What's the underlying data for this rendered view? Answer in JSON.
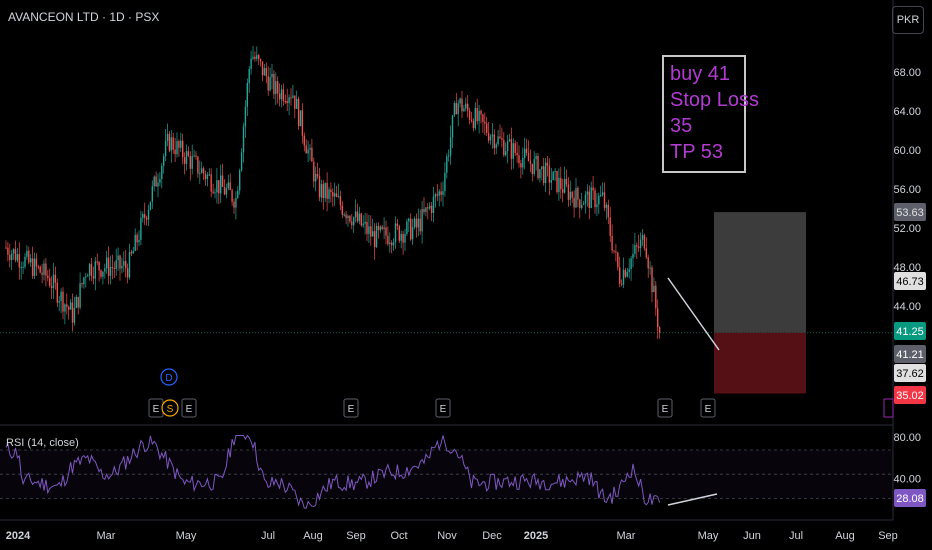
{
  "header": {
    "title": "AVANCEON LTD · 1D · PSX",
    "currency": "PKR"
  },
  "note": {
    "lines": [
      "buy 41",
      "Stop Loss",
      "35",
      "TP 53"
    ]
  },
  "rsi": {
    "label": "RSI (14, close)",
    "value": "28.08",
    "ticks": [
      "80.00",
      "40.00"
    ]
  },
  "colors": {
    "up": "#26a69a",
    "down": "#ef5350",
    "rsi": "#7e57c2",
    "profit_zone": "#434343",
    "loss_zone": "#5a1116",
    "note_text": "#b23bd1"
  },
  "price_tags": [
    {
      "label": "53.63",
      "bg": "#5d606b",
      "fg": "#e0e0e0"
    },
    {
      "label": "46.73",
      "bg": "#e0e0e0",
      "fg": "#000000"
    },
    {
      "label": "41.25",
      "bg": "#089981",
      "fg": "#ffffff"
    },
    {
      "label": "41.21",
      "bg": "#5d606b",
      "fg": "#ffffff"
    },
    {
      "label": "37.62",
      "bg": "#e0e0e0",
      "fg": "#000000"
    },
    {
      "label": "35.02",
      "bg": "#f23645",
      "fg": "#ffffff"
    }
  ],
  "event_markers": [
    {
      "label": "E"
    },
    {
      "label": "S"
    },
    {
      "label": "E"
    },
    {
      "label": "E"
    },
    {
      "label": "E"
    },
    {
      "label": "E"
    },
    {
      "label": "E"
    },
    {
      "label": "D"
    }
  ],
  "chart_data": {
    "type": "candlestick",
    "title": "AVANCEON LTD · 1D · PSX",
    "x_ticks": [
      "2024",
      "Mar",
      "May",
      "Jul",
      "Aug",
      "Sep",
      "Oct",
      "Nov",
      "Dec",
      "2025",
      "Mar",
      "May",
      "Jun",
      "Jul",
      "Aug",
      "Sep"
    ],
    "y_ticks": [
      "68.00",
      "64.00",
      "60.00",
      "56.00",
      "52.00",
      "48.00",
      "44.00"
    ],
    "ylim": [
      33,
      71
    ],
    "approx_close_series": [
      {
        "x": "2024-01",
        "y": 50
      },
      {
        "x": "2024-02",
        "y": 47
      },
      {
        "x": "2024-02-20",
        "y": 43
      },
      {
        "x": "2024-03",
        "y": 48
      },
      {
        "x": "2024-04",
        "y": 48
      },
      {
        "x": "2024-05",
        "y": 61
      },
      {
        "x": "2024-06",
        "y": 57
      },
      {
        "x": "2024-06-20",
        "y": 55
      },
      {
        "x": "2024-07",
        "y": 70
      },
      {
        "x": "2024-07-20",
        "y": 66
      },
      {
        "x": "2024-08",
        "y": 66
      },
      {
        "x": "2024-08-20",
        "y": 56
      },
      {
        "x": "2024-09",
        "y": 55
      },
      {
        "x": "2024-10",
        "y": 51
      },
      {
        "x": "2024-11",
        "y": 52
      },
      {
        "x": "2024-11-20",
        "y": 56
      },
      {
        "x": "2024-12",
        "y": 65
      },
      {
        "x": "2025-01",
        "y": 61
      },
      {
        "x": "2025-02",
        "y": 58
      },
      {
        "x": "2025-03",
        "y": 55
      },
      {
        "x": "2025-03-20",
        "y": 55
      },
      {
        "x": "2025-04",
        "y": 47
      },
      {
        "x": "2025-04-20",
        "y": 51
      },
      {
        "x": "2025-05",
        "y": 41.25
      }
    ],
    "position": {
      "entry": 41.25,
      "stop": 35.02,
      "target": 53.63
    },
    "rsi": {
      "label": "RSI (14, close)",
      "last": 28.08,
      "levels": [
        70,
        50,
        30
      ]
    }
  }
}
